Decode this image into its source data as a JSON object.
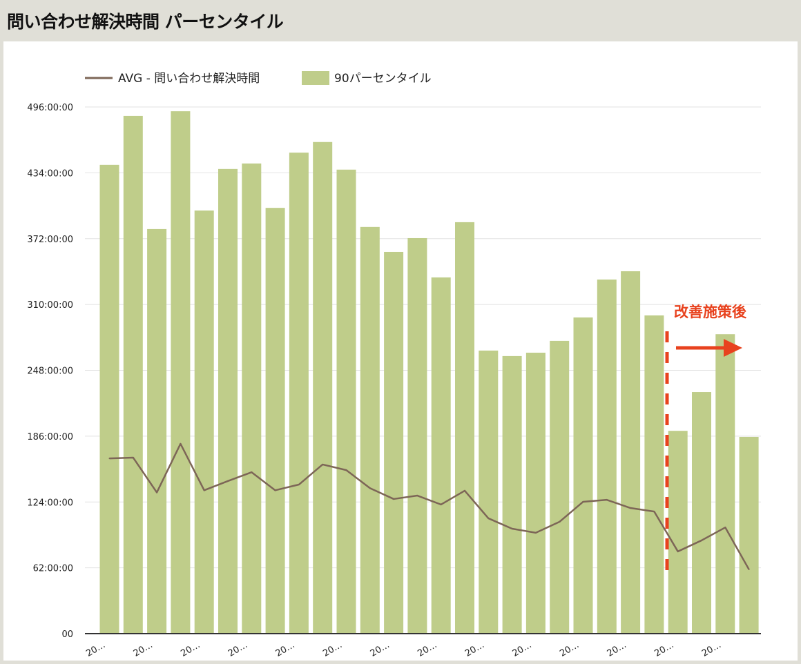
{
  "chart_data": {
    "type": "bar",
    "title": "問い合わせ解決時間 パーセンタイル",
    "xlabel": "",
    "ylabel": "",
    "ylim": [
      0,
      496
    ],
    "y_ticks": [
      "00",
      "62:00:00",
      "124:00:00",
      "186:00:00",
      "248:00:00",
      "310:00:00",
      "372:00:00",
      "434:00:00",
      "496:00:00"
    ],
    "y_tick_values": [
      0,
      62,
      124,
      186,
      248,
      310,
      372,
      434,
      496
    ],
    "x_tick_label": "20…",
    "grid": true,
    "legend_position": "top-left",
    "series": [
      {
        "name": "AVG - 問い合わせ解決時間",
        "type": "line",
        "color": "#7d6657",
        "values": [
          165,
          165.8,
          133,
          178.8,
          135,
          143.7,
          152,
          135,
          140.4,
          159.3,
          154,
          137,
          126.8,
          130,
          121.6,
          134.6,
          108.6,
          98.8,
          95,
          105.3,
          124.2,
          126,
          118.3,
          115,
          77.4,
          87.8,
          100,
          60.5
        ]
      },
      {
        "name": "90パーセンタイル",
        "type": "bar",
        "color": "#bfcd8a",
        "values": [
          441.5,
          487.6,
          381,
          492,
          398.5,
          437.6,
          442.8,
          401,
          453,
          463,
          437,
          383,
          359.5,
          372.5,
          335.5,
          387.5,
          266.6,
          261.4,
          264.6,
          275.7,
          297.8,
          333.5,
          341.3,
          299.7,
          191,
          227.5,
          282,
          185.3
        ]
      }
    ],
    "annotation": {
      "text": "改善施策後",
      "color": "#e8421e",
      "marker_after_index": 23
    }
  }
}
